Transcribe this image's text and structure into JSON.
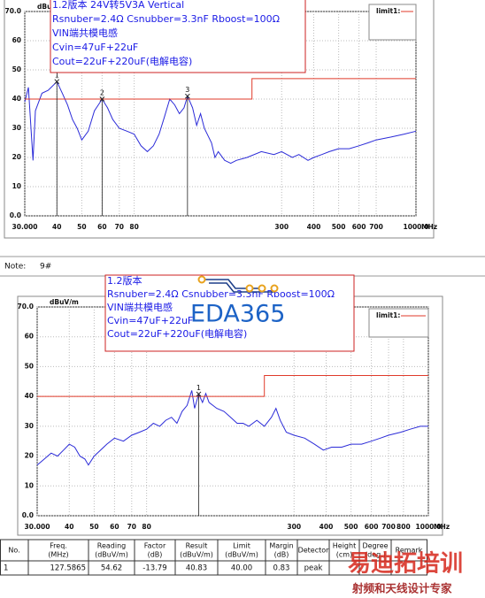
{
  "chart_data": [
    {
      "type": "line",
      "xscale": "log",
      "grid": true,
      "y_unit": "dBuV/m",
      "x_unit": "MHz",
      "xlim": [
        30,
        1000
      ],
      "ylim": [
        0,
        70
      ],
      "xticks": [
        {
          "value": 30,
          "label": "30.000"
        },
        40,
        50,
        60,
        70,
        80,
        300,
        400,
        500,
        600,
        700,
        {
          "value": 1000,
          "label": "1000.0"
        }
      ],
      "yticks": [
        {
          "value": 0,
          "label": "0.0"
        },
        10,
        20,
        30,
        40,
        50,
        60,
        {
          "value": 70,
          "label": "70.0"
        }
      ],
      "annotation_lines": [
        "1.2版本  24V转5V3A Vertical",
        "Rsnuber=2.4Ω  Csnubber=3.3nF Rboost=100Ω",
        "VIN端共模电感",
        "Cvin=47uF+22uF",
        "Cout=22uF+220uF(电解电容)"
      ],
      "series": [
        {
          "color": "#2b2bd8",
          "x": [
            30,
            31,
            32.3,
            33,
            35,
            37,
            39,
            40,
            42,
            44,
            46,
            48,
            50,
            53,
            56,
            58,
            60,
            63,
            66,
            70,
            75,
            80,
            85,
            90,
            95,
            100,
            105,
            110,
            115,
            120,
            125,
            129,
            135,
            140,
            145,
            150,
            160,
            165,
            170,
            180,
            190,
            200,
            220,
            250,
            280,
            300,
            330,
            350,
            380,
            400,
            430,
            460,
            500,
            550,
            600,
            650,
            700,
            800,
            900,
            1000
          ],
          "values": [
            39,
            44,
            19,
            36,
            42,
            43,
            45,
            46,
            42,
            38,
            33,
            30,
            26,
            29,
            36,
            38,
            40,
            37,
            33,
            30,
            29,
            28,
            24,
            22,
            24,
            28,
            34,
            40,
            38,
            35,
            37,
            41,
            37,
            31,
            35,
            30,
            25,
            20,
            22,
            19,
            18,
            19,
            20,
            22,
            21,
            22,
            20,
            21,
            19,
            20,
            21,
            22,
            23,
            23,
            24,
            25,
            26,
            27,
            28,
            29
          ]
        },
        {
          "name": "limit1:",
          "color": "#e03a2a",
          "x": [
            30,
            230,
            230,
            1000
          ],
          "values": [
            40,
            40,
            47,
            47
          ]
        }
      ],
      "markers": [
        {
          "x": 40,
          "value": 46,
          "label": "1"
        },
        {
          "x": 60,
          "value": 40,
          "label": "2"
        },
        {
          "x": 129,
          "value": 41,
          "label": "3"
        }
      ]
    },
    {
      "type": "line",
      "xscale": "log",
      "grid": true,
      "y_unit": "dBuV/m",
      "x_unit": "MHz",
      "xlim": [
        30,
        1000
      ],
      "ylim": [
        0,
        70
      ],
      "xticks": [
        {
          "value": 30,
          "label": "30.000"
        },
        40,
        50,
        60,
        70,
        80,
        300,
        400,
        500,
        600,
        700,
        800,
        {
          "value": 1000,
          "label": "1000.0"
        }
      ],
      "yticks": [
        {
          "value": 0,
          "label": "0.0"
        },
        10,
        20,
        30,
        40,
        50,
        60,
        {
          "value": 70,
          "label": "70.0"
        }
      ],
      "annotation_lines": [
        "1.2版本",
        "Rsnuber=2.4Ω Csnubber=3.3nF Rboost=100Ω",
        "VIN端共模电感",
        "Cvin=47uF+22uF",
        "Cout=22uF+220uF(电解电容)"
      ],
      "series": [
        {
          "color": "#2b2bd8",
          "x": [
            30,
            32,
            34,
            36,
            38,
            40,
            42,
            44,
            46,
            47.5,
            50,
            53,
            56,
            60,
            65,
            70,
            75,
            80,
            85,
            90,
            95,
            100,
            105,
            110,
            115,
            120,
            123,
            127.6,
            132,
            136,
            140,
            150,
            160,
            170,
            180,
            190,
            200,
            215,
            230,
            245,
            255,
            265,
            280,
            300,
            330,
            360,
            390,
            420,
            460,
            500,
            550,
            600,
            650,
            700,
            780,
            850,
            930,
            1000
          ],
          "values": [
            17,
            19,
            21,
            20,
            22,
            24,
            23,
            20,
            19,
            17,
            20,
            22,
            24,
            26,
            25,
            27,
            28,
            29,
            31,
            30,
            32,
            33,
            31,
            35,
            37,
            42,
            36,
            40.8,
            38,
            41,
            38,
            36,
            35,
            33,
            31,
            31,
            30,
            32,
            30,
            33,
            36,
            32,
            28,
            27,
            26,
            24,
            22,
            23,
            23,
            24,
            24,
            25,
            26,
            27,
            28,
            29,
            30,
            30
          ]
        },
        {
          "name": "limit1:",
          "color": "#e03a2a",
          "x": [
            30,
            230,
            230,
            1000
          ],
          "values": [
            40,
            40,
            47,
            47
          ]
        }
      ],
      "markers": [
        {
          "x": 127.6,
          "value": 40.8,
          "label": "1"
        }
      ]
    }
  ],
  "note": {
    "label": "Note:",
    "value": "9#"
  },
  "table": {
    "header": [
      [
        "No."
      ],
      [
        "Freq.",
        "(MHz)"
      ],
      [
        "Reading",
        "(dBuV/m)"
      ],
      [
        "Factor",
        "(dB)"
      ],
      [
        "Result",
        "(dBuV/m)"
      ],
      [
        "Limit",
        "(dBuV/m)"
      ],
      [
        "Margin",
        "(dB)"
      ],
      [
        "Detector"
      ],
      [
        "Height",
        "(cm)"
      ],
      [
        "Degree",
        "(deg.)"
      ],
      [
        "Remark"
      ]
    ],
    "rows": [
      [
        "1",
        "127.5865",
        "54.62",
        "-13.79",
        "40.83",
        "40.00",
        "0.83",
        "peak"
      ]
    ]
  },
  "watermark": {
    "logo": "EDA365",
    "cn_title": "易迪拓培训",
    "cn_subtitle": "射频和天线设计专家"
  }
}
